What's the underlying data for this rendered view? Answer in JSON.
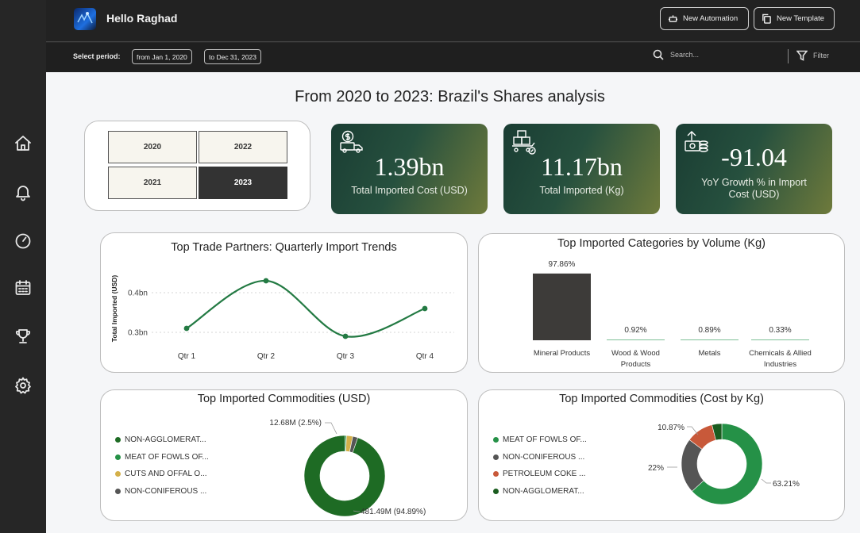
{
  "header": {
    "greeting": "Hello Raghad",
    "new_automation": "New Automation",
    "new_template": "New Template"
  },
  "filters": {
    "period_label": "Select period:",
    "from": "from Jan 1, 2020",
    "to": "to Dec 31, 2023",
    "search_placeholder": "Search...",
    "filter_label": "Filter"
  },
  "nav": [
    "home-icon",
    "bell-icon",
    "gauge-icon",
    "calendar-icon",
    "trophy-icon",
    "gear-icon"
  ],
  "title": "From 2020 to 2023: Brazil's Shares analysis",
  "years": [
    {
      "label": "2020",
      "selected": false
    },
    {
      "label": "2022",
      "selected": false
    },
    {
      "label": "2021",
      "selected": false
    },
    {
      "label": "2023",
      "selected": true
    }
  ],
  "kpis": [
    {
      "value": "1.39bn",
      "label": "Total Imported Cost (USD)",
      "icon": "money-truck-icon"
    },
    {
      "value": "11.17bn",
      "label": "Total Imported (Kg)",
      "icon": "boxes-cart-icon"
    },
    {
      "value": "-91.04",
      "label": "YoY Growth % in Import Cost (USD)",
      "icon": "growth-money-icon"
    }
  ],
  "colors": {
    "line": "#237a43",
    "bar_dark": "#3d3b39",
    "bar_light": "#7fbf96",
    "dark_green": "#1e6b24",
    "green": "#259147",
    "gold": "#d4b04a",
    "gray": "#555555",
    "orange": "#c8593a",
    "deep_green": "#1a5c1f"
  },
  "chart_data": [
    {
      "type": "line",
      "title": "Top Trade Partners: Quarterly Import Trends",
      "ylabel": "Total Imported (USD)",
      "xlabel": "",
      "categories": [
        "Qtr 1",
        "Qtr 2",
        "Qtr 3",
        "Qtr 4"
      ],
      "values": [
        0.31,
        0.43,
        0.29,
        0.36
      ],
      "yticks": [
        "0.3bn",
        "0.4bn"
      ],
      "ytick_values": [
        0.3,
        0.4
      ],
      "ylim": [
        0.25,
        0.47
      ],
      "grid": true
    },
    {
      "type": "bar",
      "title": "Top Imported Categories by Volume (Kg)",
      "categories": [
        "Mineral Products",
        "Wood & Wood Products",
        "Metals",
        "Chemicals & Allied Industries"
      ],
      "values": [
        97.86,
        0.92,
        0.89,
        0.33
      ],
      "labels": [
        "97.86%",
        "0.92%",
        "0.89%",
        "0.33%"
      ],
      "ylim": [
        0,
        100
      ]
    },
    {
      "type": "pie",
      "title": "Top Imported Commodities (USD)",
      "legend": [
        "NON-AGGLOMERAT...",
        "MEAT OF FOWLS OF...",
        "CUTS AND OFFAL O...",
        "NON-CONIFEROUS ..."
      ],
      "values": [
        94.89,
        0.6,
        2.5,
        2.01
      ],
      "data_labels": [
        "481.49M (94.89%)",
        "12.68M (2.5%)"
      ],
      "legend_placement": "left"
    },
    {
      "type": "pie",
      "title": "Top Imported Commodities (Cost by Kg)",
      "legend": [
        "MEAT OF FOWLS OF...",
        "NON-CONIFEROUS ...",
        "PETROLEUM COKE ...",
        "NON-AGGLOMERAT..."
      ],
      "values": [
        63.21,
        22,
        10.87,
        3.92
      ],
      "data_labels": [
        "63.21%",
        "22%",
        "10.87%"
      ],
      "legend_placement": "left"
    }
  ]
}
